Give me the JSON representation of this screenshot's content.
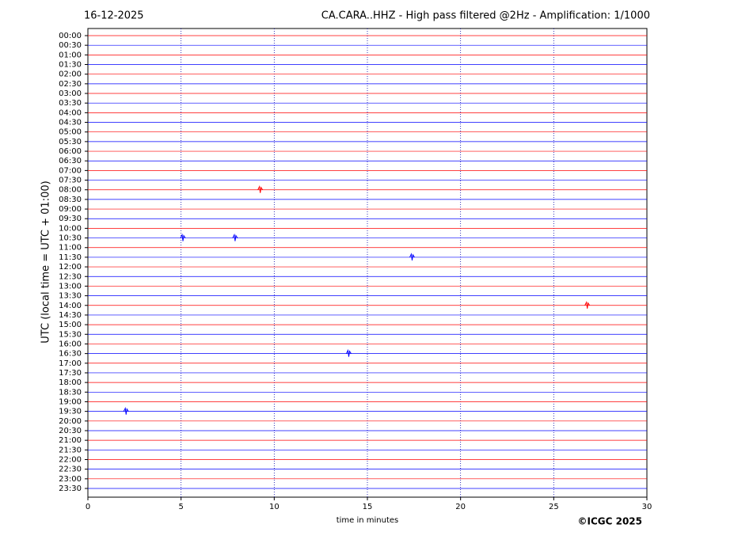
{
  "chart_data": {
    "type": "helicorder",
    "date": "16-12-2025",
    "title": "CA.CARA..HHZ - High pass filtered @2Hz - Amplification: 1/1000",
    "ylabel": "UTC (local time = UTC + 01:00)",
    "xlabel": "time in minutes",
    "credit": "©ICGC 2025",
    "categories": [
      "00:00",
      "00:30",
      "01:00",
      "01:30",
      "02:00",
      "02:30",
      "03:00",
      "03:30",
      "04:00",
      "04:30",
      "05:00",
      "05:30",
      "06:00",
      "06:30",
      "07:00",
      "07:30",
      "08:00",
      "08:30",
      "09:00",
      "09:30",
      "10:00",
      "10:30",
      "11:00",
      "11:30",
      "12:00",
      "12:30",
      "13:00",
      "13:30",
      "14:00",
      "14:30",
      "15:00",
      "15:30",
      "16:00",
      "16:30",
      "17:00",
      "17:30",
      "18:00",
      "18:30",
      "19:00",
      "19:30",
      "20:00",
      "20:30",
      "21:00",
      "21:30",
      "22:00",
      "22:30",
      "23:00",
      "23:30"
    ],
    "colors": [
      "#ff0000",
      "#0000ff"
    ],
    "xlim": [
      0,
      30
    ],
    "xticks": [
      0,
      5,
      10,
      15,
      20,
      25,
      30
    ],
    "grid": true,
    "events": [
      {
        "category": "08:00",
        "x": 9.25
      },
      {
        "category": "10:30",
        "x": 5.1
      },
      {
        "category": "10:30",
        "x": 7.9
      },
      {
        "category": "11:30",
        "x": 17.4
      },
      {
        "category": "14:00",
        "x": 26.8
      },
      {
        "category": "16:30",
        "x": 14.0
      },
      {
        "category": "19:30",
        "x": 2.05
      }
    ]
  }
}
